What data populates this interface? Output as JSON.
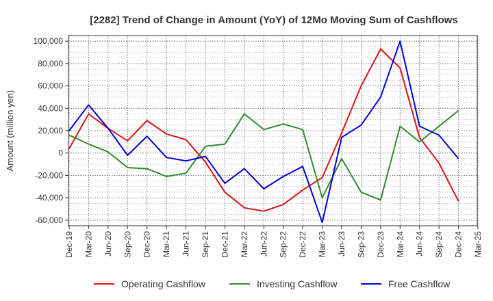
{
  "chart_data": {
    "type": "line",
    "title": "[2282]  Trend of Change in Amount (YoY) of 12Mo Moving Sum of Cashflows",
    "xlabel": "",
    "ylabel": "Amount (million yen)",
    "ylim": [
      -65000,
      105000
    ],
    "yticks": [
      -60000,
      -40000,
      -20000,
      0,
      20000,
      40000,
      60000,
      80000,
      100000
    ],
    "ytick_labels": [
      "-60,000",
      "-40,000",
      "-20,000",
      "0",
      "20,000",
      "40,000",
      "60,000",
      "80,000",
      "100,000"
    ],
    "grid": true,
    "legend_position": "bottom",
    "categories": [
      "Dec-19",
      "Mar-20",
      "Jun-20",
      "Sep-20",
      "Dec-20",
      "Mar-21",
      "Jun-21",
      "Sep-21",
      "Dec-21",
      "Mar-22",
      "Jun-22",
      "Sep-22",
      "Dec-22",
      "Mar-23",
      "Jun-23",
      "Sep-23",
      "Dec-23",
      "Mar-24",
      "Jun-24",
      "Sep-24",
      "Dec-24",
      "Mar-25"
    ],
    "series": [
      {
        "name": "Operating Cashflow",
        "color": "#dd1111",
        "values": [
          4000,
          35000,
          22000,
          11000,
          29000,
          17000,
          12000,
          -8000,
          -35000,
          -49000,
          -52000,
          -46000,
          -33000,
          -22000,
          18000,
          60000,
          93000,
          76000,
          14000,
          -9000,
          -43000,
          null
        ]
      },
      {
        "name": "Investing Cashflow",
        "color": "#2e8b2e",
        "values": [
          16000,
          8000,
          1000,
          -13000,
          -14000,
          -21000,
          -18000,
          6000,
          8000,
          35000,
          21000,
          26000,
          21000,
          -40000,
          -5000,
          -35000,
          -42000,
          24000,
          10000,
          24000,
          38000,
          null
        ]
      },
      {
        "name": "Free Cashflow",
        "color": "#0000dd",
        "values": [
          20000,
          43000,
          22000,
          -2000,
          15000,
          -4000,
          -7000,
          -3000,
          -27000,
          -14000,
          -32000,
          -21000,
          -12000,
          -62000,
          14000,
          25000,
          50000,
          100000,
          24000,
          16000,
          -5000,
          null
        ]
      }
    ]
  }
}
